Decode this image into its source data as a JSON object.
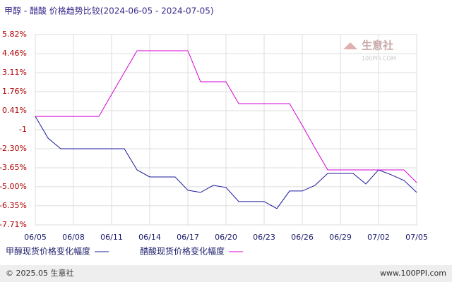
{
  "chart_data": {
    "type": "line",
    "title": "甲醇 - 醋酸 价格趋势比较(2024-06-05 - 2024-07-05)",
    "categories": [
      "06/05",
      null,
      null,
      "06/08",
      null,
      null,
      "06/11",
      null,
      null,
      "06/14",
      null,
      null,
      "06/17",
      null,
      null,
      "06/20",
      null,
      null,
      "06/23",
      null,
      null,
      "06/26",
      null,
      null,
      "06/29",
      null,
      null,
      "07/02",
      null,
      null,
      "07/05"
    ],
    "series": [
      {
        "name": "甲醇现货价格变化幅度",
        "color": "#1a1a9c",
        "values": [
          0,
          -1.54,
          -2.3,
          -2.3,
          -2.3,
          -2.3,
          -2.3,
          -2.3,
          -3.8,
          -4.3,
          -4.3,
          -4.3,
          -5.25,
          -5.4,
          -4.9,
          -5.05,
          -6.05,
          -6.05,
          -6.05,
          -6.55,
          -5.3,
          -5.3,
          -4.9,
          -4.05,
          -4.05,
          -4.05,
          -4.8,
          -3.8,
          -4.15,
          -4.55,
          -5.4
        ]
      },
      {
        "name": "醋酸现货价格变化幅度",
        "color": "#d600d6",
        "values": [
          0,
          0,
          0,
          0,
          0,
          0,
          1.56,
          3.12,
          4.67,
          4.67,
          4.67,
          4.67,
          4.67,
          2.46,
          2.46,
          2.46,
          0.91,
          0.91,
          0.91,
          0.91,
          0.91,
          -0.64,
          -2.25,
          -3.8,
          -3.8,
          -3.8,
          -3.8,
          -3.8,
          -3.8,
          -3.8,
          -4.7
        ]
      }
    ],
    "ylim": [
      -7.71,
      5.82
    ],
    "yticks": [
      {
        "value": 5.82,
        "label": "5.82%"
      },
      {
        "value": 4.46,
        "label": "4.46%"
      },
      {
        "value": 3.11,
        "label": "3.11%"
      },
      {
        "value": 1.76,
        "label": "1.76%"
      },
      {
        "value": 0.41,
        "label": "0.41%"
      },
      {
        "value": -0.94,
        "label": "-1"
      },
      {
        "value": -2.3,
        "label": "-2.30%"
      },
      {
        "value": -3.65,
        "label": "-3.65%"
      },
      {
        "value": -5.0,
        "label": "-5.00%"
      },
      {
        "value": -6.35,
        "label": "-6.35%"
      },
      {
        "value": -7.71,
        "label": "-7.71%"
      }
    ],
    "grid": true,
    "watermark": {
      "name": "生意社",
      "site": "100PPI.COM"
    },
    "footer": {
      "left": "© 2025.05 生意社",
      "right": "www.100PPI.com"
    }
  }
}
